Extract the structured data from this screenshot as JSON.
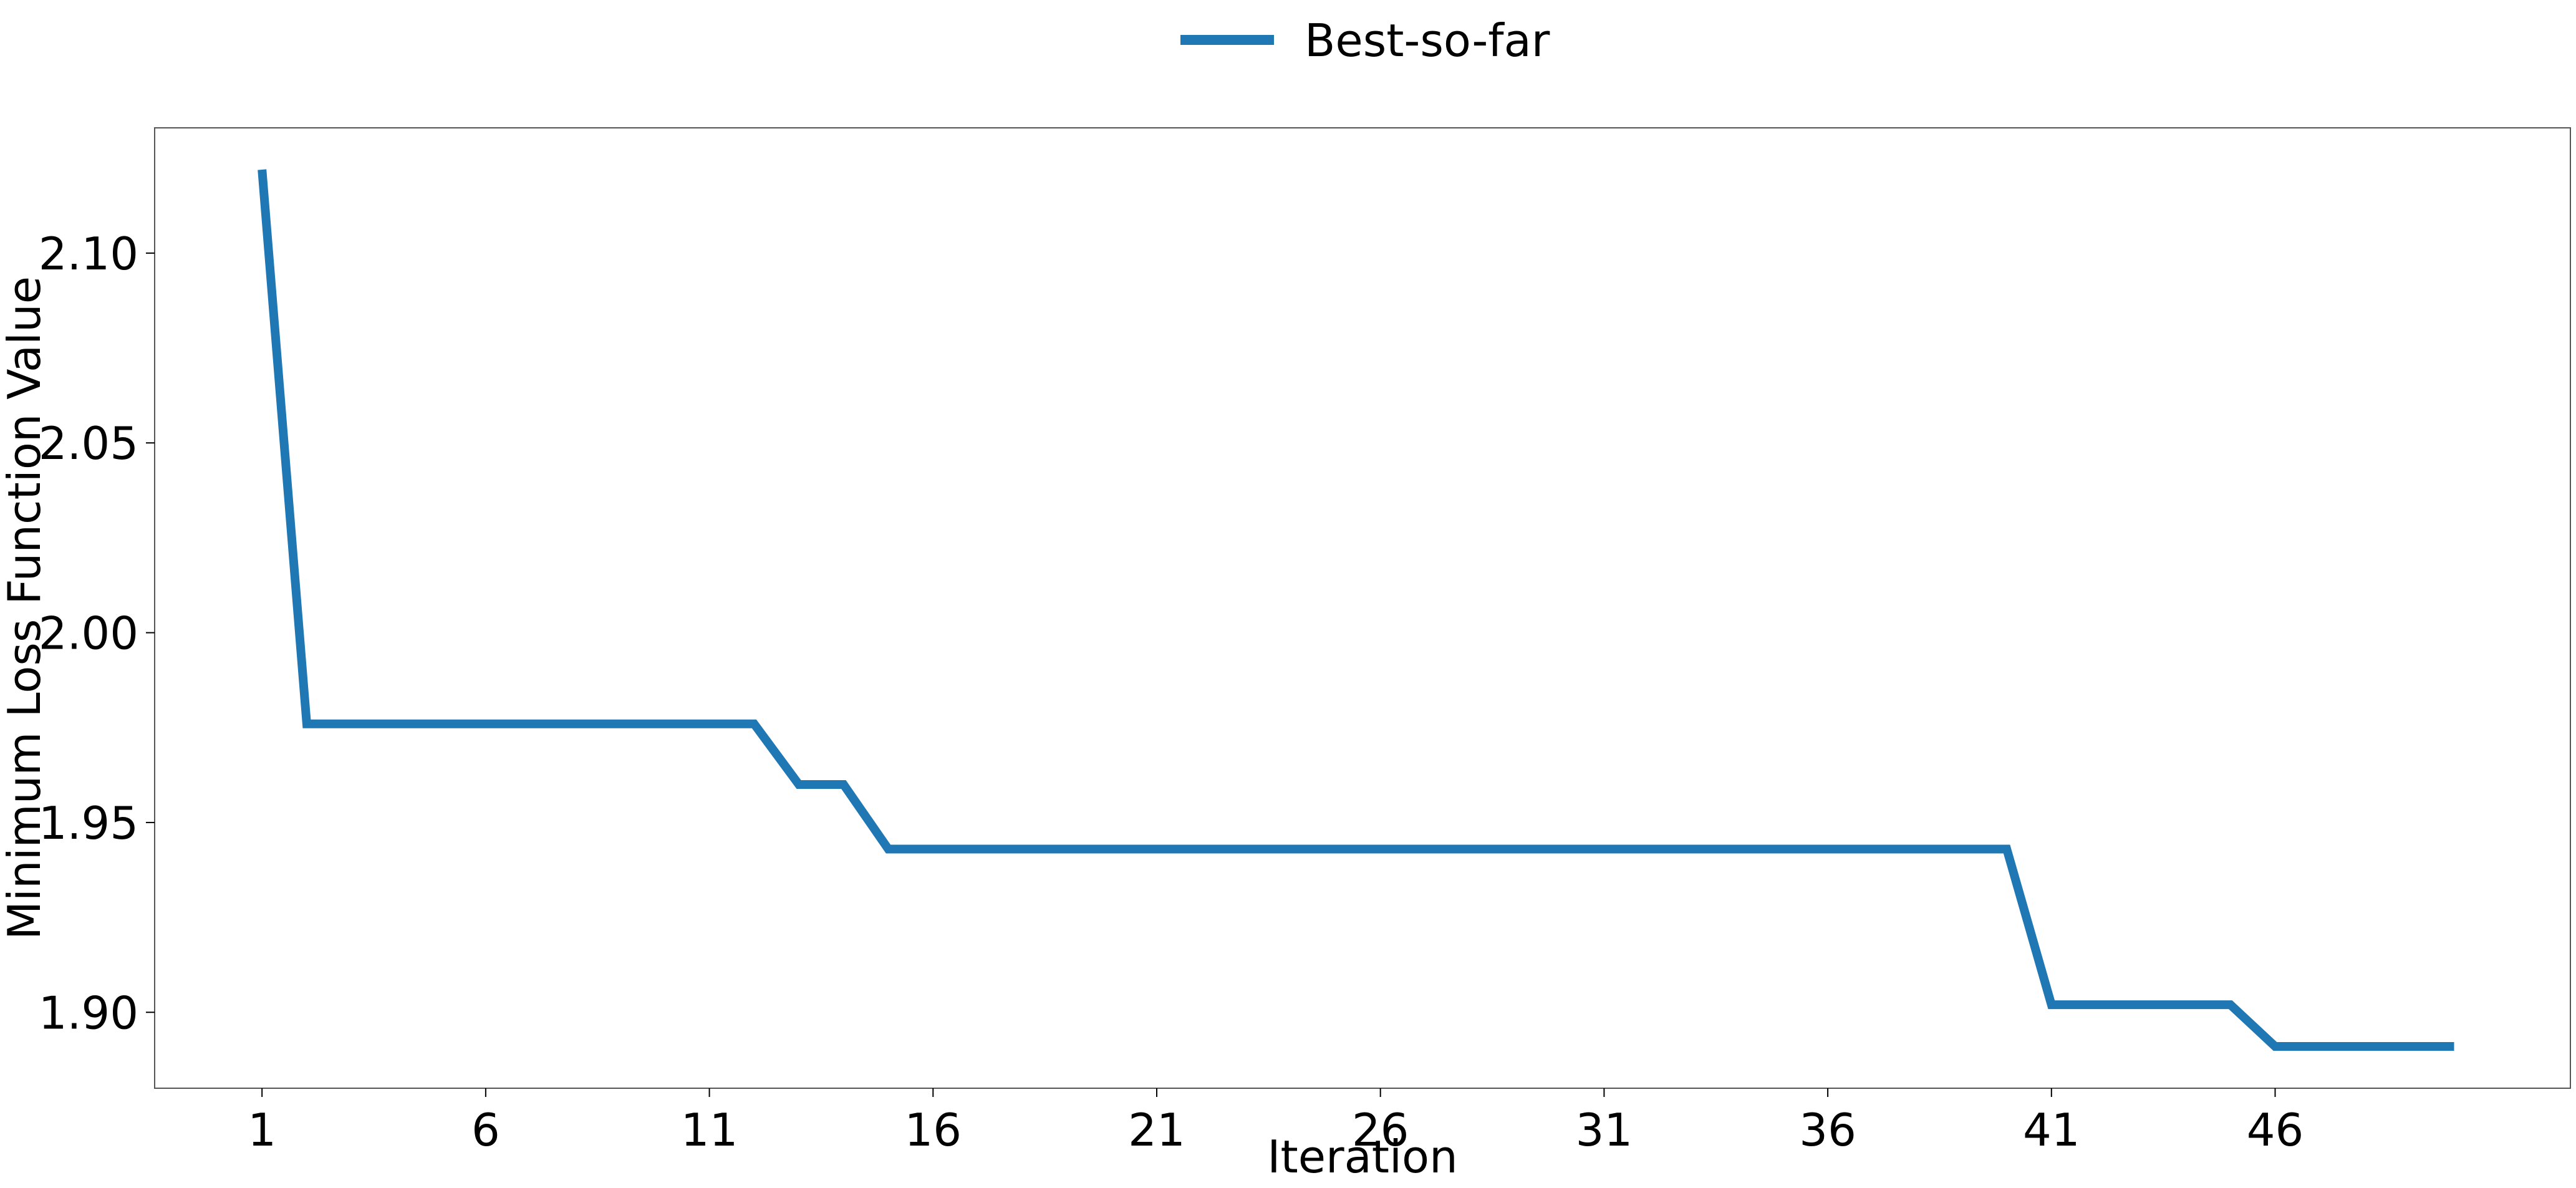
{
  "legend": {
    "entries": [
      "Best-so-far"
    ]
  },
  "colors": {
    "series": "#1f77b4",
    "axes": "#555555"
  },
  "chart_data": {
    "type": "line",
    "title": "",
    "xlabel": "Iteration",
    "ylabel": "Minimum Loss Function Value",
    "x_ticks": [
      1,
      6,
      11,
      16,
      21,
      26,
      31,
      36,
      41,
      46
    ],
    "x_tick_labels": [
      "1",
      "6",
      "11",
      "16",
      "21",
      "26",
      "31",
      "36",
      "41",
      "46"
    ],
    "y_ticks": [
      1.9,
      1.95,
      2.0,
      2.05,
      2.1
    ],
    "y_tick_labels": [
      "1.90",
      "1.95",
      "2.00",
      "2.05",
      "2.10"
    ],
    "xlim": [
      -1.4,
      52.6
    ],
    "ylim": [
      1.88,
      2.133
    ],
    "grid": false,
    "legend_position": "top-center",
    "series": [
      {
        "name": "Best-so-far",
        "x": [
          1,
          2,
          3,
          4,
          5,
          6,
          7,
          8,
          9,
          10,
          11,
          12,
          13,
          14,
          15,
          16,
          17,
          18,
          19,
          20,
          21,
          22,
          23,
          24,
          25,
          26,
          27,
          28,
          29,
          30,
          31,
          32,
          33,
          34,
          35,
          36,
          37,
          38,
          39,
          40,
          41,
          42,
          43,
          44,
          45,
          46,
          47,
          48,
          49,
          50
        ],
        "y": [
          2.122,
          1.976,
          1.976,
          1.976,
          1.976,
          1.976,
          1.976,
          1.976,
          1.976,
          1.976,
          1.976,
          1.976,
          1.96,
          1.96,
          1.943,
          1.943,
          1.943,
          1.943,
          1.943,
          1.943,
          1.943,
          1.943,
          1.943,
          1.943,
          1.943,
          1.943,
          1.943,
          1.943,
          1.943,
          1.943,
          1.943,
          1.943,
          1.943,
          1.943,
          1.943,
          1.943,
          1.943,
          1.943,
          1.943,
          1.943,
          1.902,
          1.902,
          1.902,
          1.902,
          1.902,
          1.891,
          1.891,
          1.891,
          1.891,
          1.891
        ]
      }
    ]
  }
}
